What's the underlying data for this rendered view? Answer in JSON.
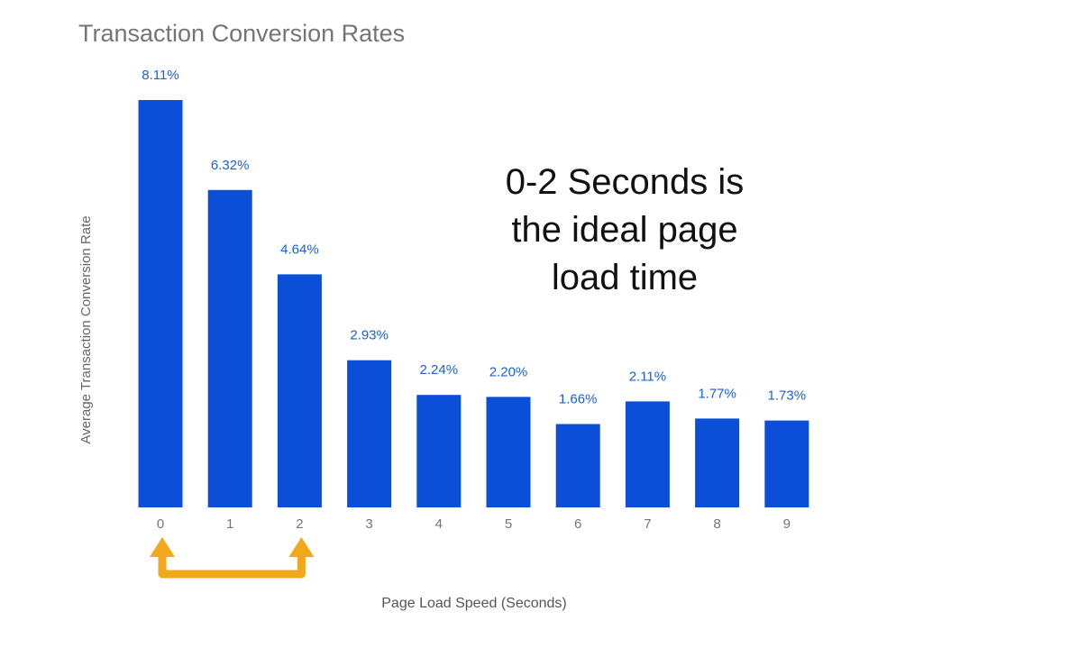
{
  "chart_data": {
    "type": "bar",
    "title": "Transaction Conversion Rates",
    "xlabel": "Page Load Speed (Seconds)",
    "ylabel": "Average Transaction Conversion Rate",
    "categories": [
      "0",
      "1",
      "2",
      "3",
      "4",
      "5",
      "6",
      "7",
      "8",
      "9"
    ],
    "values": [
      8.11,
      6.32,
      4.64,
      2.93,
      2.24,
      2.2,
      1.66,
      2.11,
      1.77,
      1.73
    ],
    "data_labels": [
      "8.11%",
      "6.32%",
      "4.64%",
      "2.93%",
      "2.24%",
      "2.20%",
      "1.66%",
      "2.11%",
      "1.77%",
      "1.73%"
    ],
    "ylim": [
      0,
      8.11
    ],
    "grid": false,
    "legend": "none",
    "annotations": {
      "text_lines": [
        "0-2 Seconds is",
        "the ideal page",
        "load time"
      ],
      "bracket_from": "0",
      "bracket_to": "2"
    }
  },
  "colors": {
    "bar": "#0b4fd9",
    "data_label": "#1a5fd8",
    "title": "#757575",
    "axis_text": "#757575",
    "arrow": "#f2a81d",
    "annotation_text": "#111111"
  }
}
